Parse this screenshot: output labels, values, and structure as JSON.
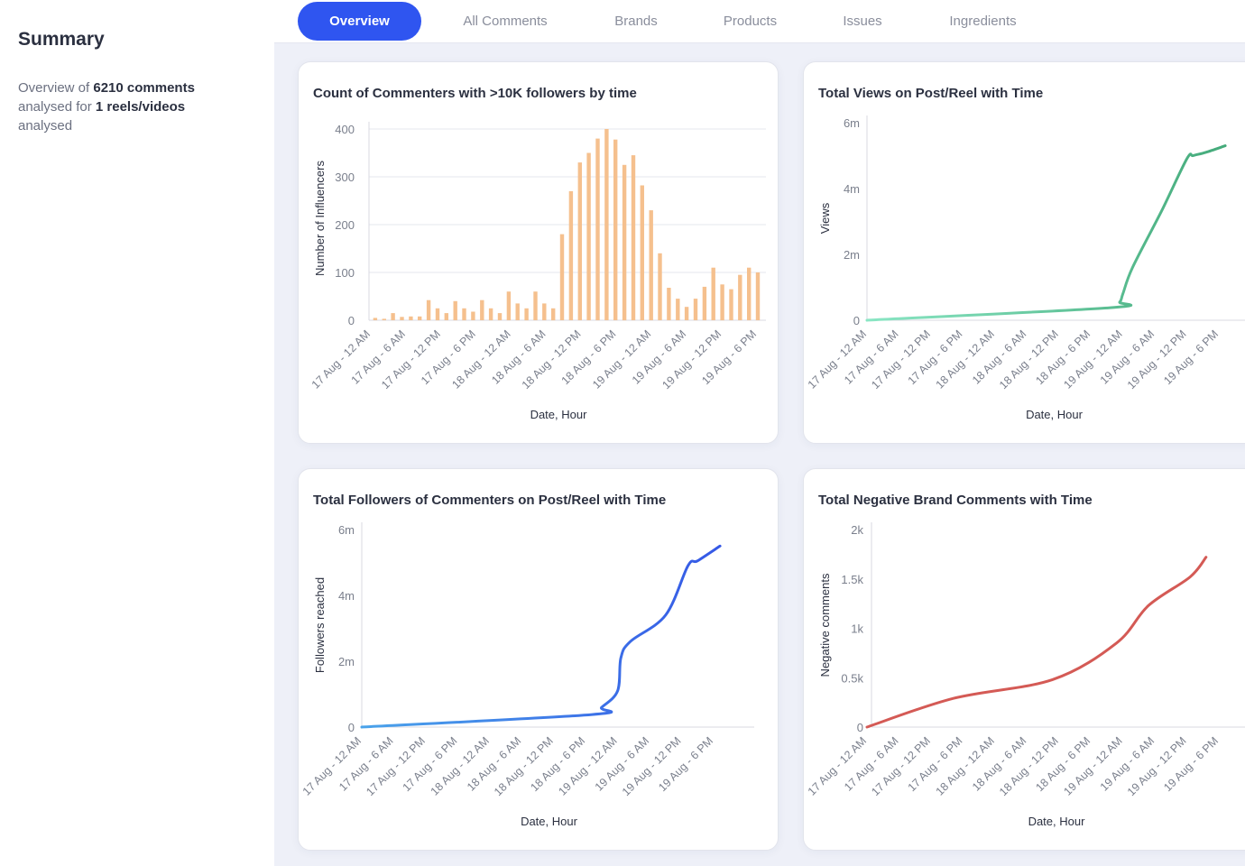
{
  "sidebar": {
    "title": "Summary",
    "desc_prefix": "Overview of",
    "comment_count": "6210 comments",
    "desc_mid": "analysed for",
    "video_count": "1 reels/videos",
    "desc_suffix": "analysed"
  },
  "tabs": [
    {
      "label": "Overview",
      "active": true
    },
    {
      "label": "All Comments",
      "active": false
    },
    {
      "label": "Brands",
      "active": false
    },
    {
      "label": "Products",
      "active": false
    },
    {
      "label": "Issues",
      "active": false
    },
    {
      "label": "Ingredients",
      "active": false
    }
  ],
  "x_tick_labels": [
    "17 Aug - 12 AM",
    "17 Aug - 6 AM",
    "17 Aug - 12 PM",
    "17 Aug - 6 PM",
    "18 Aug - 12 AM",
    "18 Aug - 6 AM",
    "18 Aug - 12 PM",
    "18 Aug - 6 PM",
    "19 Aug - 12 AM",
    "19 Aug - 6 AM",
    "19 Aug - 12 PM",
    "19 Aug - 6 PM"
  ],
  "chart_data": [
    {
      "type": "bar",
      "title": "Count of Commenters with >10K followers by time",
      "xlabel": "Date, Hour",
      "ylabel": "Number of Influencers",
      "ylim": [
        0,
        400
      ],
      "yticks": [
        "0",
        "100",
        "200",
        "300",
        "400"
      ],
      "color": "#f5c08e",
      "x_ticks": [
        "17 Aug - 12 AM",
        "17 Aug - 6 AM",
        "17 Aug - 12 PM",
        "17 Aug - 6 PM",
        "18 Aug - 12 AM",
        "18 Aug - 6 AM",
        "18 Aug - 12 PM",
        "18 Aug - 6 PM",
        "19 Aug - 12 AM",
        "19 Aug - 6 AM",
        "19 Aug - 12 PM",
        "19 Aug - 6 PM"
      ],
      "values": [
        5,
        3,
        15,
        7,
        8,
        8,
        42,
        25,
        15,
        40,
        25,
        18,
        42,
        25,
        15,
        60,
        35,
        25,
        60,
        35,
        25,
        180,
        270,
        330,
        350,
        380,
        400,
        378,
        325,
        345,
        282,
        230,
        140,
        68,
        45,
        28,
        45,
        70,
        110,
        75,
        65,
        95,
        110,
        100
      ],
      "grid": true
    },
    {
      "type": "line",
      "title": "Total Views on Post/Reel with Time",
      "xlabel": "Date, Hour",
      "ylabel": "Views",
      "ylim": [
        0,
        6
      ],
      "yticks": [
        "0",
        "2m",
        "4m",
        "6m"
      ],
      "x_ticks": [
        "17 Aug - 12 AM",
        "17 Aug - 6 AM",
        "17 Aug - 12 PM",
        "17 Aug - 6 PM",
        "18 Aug - 12 AM",
        "18 Aug - 6 AM",
        "18 Aug - 12 PM",
        "18 Aug - 6 PM",
        "19 Aug - 12 AM",
        "19 Aug - 6 AM",
        "19 Aug - 12 PM",
        "19 Aug - 6 PM"
      ],
      "x": [
        0,
        7.6,
        7.9,
        8.0,
        8.3,
        9.2,
        10.0,
        10.2,
        10.6,
        11.2
      ],
      "y": [
        0,
        0.38,
        0.55,
        0.8,
        1.6,
        3.3,
        4.9,
        5.0,
        5.1,
        5.3
      ],
      "color_start": "#8ae6c4",
      "color_end": "#44aa7a",
      "grid": false
    },
    {
      "type": "line",
      "title": "Total Followers of Commenters on Post/Reel with Time",
      "xlabel": "Date, Hour",
      "ylabel": "Followers reached",
      "ylim": [
        0,
        6
      ],
      "yticks": [
        "0",
        "2m",
        "4m",
        "6m"
      ],
      "x_ticks": [
        "17 Aug - 12 AM",
        "17 Aug - 6 AM",
        "17 Aug - 12 PM",
        "17 Aug - 6 PM",
        "18 Aug - 12 AM",
        "18 Aug - 6 AM",
        "18 Aug - 12 PM",
        "18 Aug - 6 PM",
        "19 Aug - 12 AM",
        "19 Aug - 6 AM",
        "19 Aug - 12 PM",
        "19 Aug - 6 PM"
      ],
      "x": [
        0,
        7.2,
        7.5,
        8.0,
        8.1,
        8.4,
        9.5,
        10.2,
        10.5,
        11.2
      ],
      "y": [
        0,
        0.38,
        0.6,
        1.1,
        2.1,
        2.6,
        3.4,
        4.9,
        5.05,
        5.5
      ],
      "color_start": "#4aa3ea",
      "color_end": "#3558e6",
      "grid": false
    },
    {
      "type": "line",
      "title": "Total Negative Brand Comments with Time",
      "xlabel": "Date, Hour",
      "ylabel": "Negative comments",
      "ylim": [
        0,
        2000
      ],
      "yticks": [
        "0",
        "0.5k",
        "1k",
        "1.5k",
        "2k"
      ],
      "x_ticks": [
        "17 Aug - 12 AM",
        "17 Aug - 6 AM",
        "17 Aug - 12 PM",
        "17 Aug - 6 PM",
        "18 Aug - 12 AM",
        "18 Aug - 6 AM",
        "18 Aug - 12 PM",
        "18 Aug - 6 PM",
        "19 Aug - 12 AM",
        "19 Aug - 6 AM",
        "19 Aug - 12 PM",
        "19 Aug - 6 PM"
      ],
      "x": [
        0,
        2.7,
        5.8,
        7.8,
        8.8,
        10.1,
        10.6
      ],
      "y": [
        0,
        290,
        480,
        850,
        1230,
        1520,
        1720
      ],
      "color": "#d45a55",
      "grid": false
    }
  ]
}
